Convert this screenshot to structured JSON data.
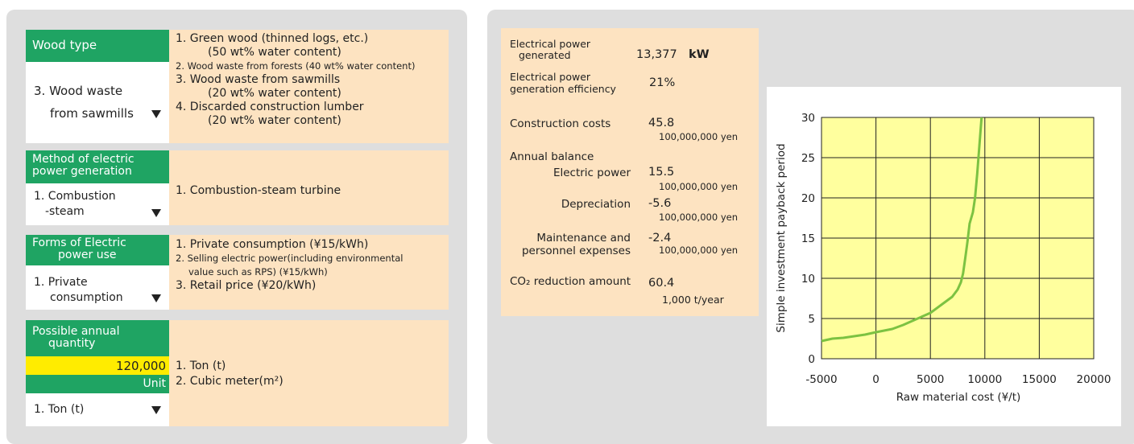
{
  "inputs": [
    {
      "label": "Wood type",
      "selected": [
        "3. Wood waste",
        "from sawmills"
      ],
      "options": [
        [
          "1. Green wood (thinned logs, etc.)",
          "(50 wt% water content)"
        ],
        [
          "2. Wood waste from forests (40 wt% water content)"
        ],
        [
          "3. Wood waste from sawmills",
          "(20 wt% water content)"
        ],
        [
          "4. Discarded construction lumber",
          "(20 wt% water content)"
        ]
      ]
    },
    {
      "label": [
        "Method of electric",
        "power generation"
      ],
      "selected": [
        "1. Combustion",
        "-steam"
      ],
      "options": [
        [
          "1. Combustion-steam turbine"
        ]
      ]
    },
    {
      "label": [
        "Forms of Electric",
        "power use"
      ],
      "selected": [
        "1. Private",
        "consumption"
      ],
      "options": [
        [
          "1. Private consumption (¥15/kWh)"
        ],
        [
          "2. Selling electric power(including environmental",
          "value such as RPS) (¥15/kWh)"
        ],
        [
          "3. Retail price (¥20/kWh)"
        ]
      ]
    },
    {
      "label": [
        "Possible annual",
        "quantity"
      ],
      "value": "120,000",
      "unit_label": "Unit",
      "selected": [
        "1. Ton (t)"
      ],
      "options": [
        [
          "1. Ton (t)"
        ],
        [
          "2. Cubic meter(m²)"
        ]
      ]
    }
  ],
  "results": [
    {
      "label": [
        "Electrical power",
        "generated"
      ],
      "value": "13,377",
      "unit": "kW"
    },
    {
      "label": [
        "Electrical power",
        "generation efficiency"
      ],
      "value": "21%"
    },
    {
      "label": [
        "Construction costs"
      ],
      "value": "45.8",
      "unit": "100,000,000 yen"
    },
    {
      "label": [
        "Annual balance"
      ]
    },
    {
      "label": [
        "Electric power"
      ],
      "value": "15.5",
      "unit": "100,000,000 yen"
    },
    {
      "label": [
        "Depreciation"
      ],
      "value": "-5.6",
      "unit": "100,000,000 yen"
    },
    {
      "label": [
        "Maintenance and",
        "personnel expenses"
      ],
      "value": "-2.4",
      "unit": "100,000,000 yen"
    },
    {
      "label": [
        "CO₂ reduction amount"
      ],
      "value": "60.4",
      "unit": "1,000 t/year"
    }
  ],
  "chart_data": {
    "type": "line",
    "xlabel": "Raw material cost (¥/t)",
    "ylabel": "Simple investment payback period",
    "x": [
      -5000,
      -4000,
      -3000,
      -2000,
      -1000,
      0,
      1500,
      2500,
      3500,
      4500,
      5000,
      6000,
      7000,
      7500,
      7800,
      8000,
      8200,
      8400,
      8600,
      8900,
      9100,
      9300,
      9500,
      9700
    ],
    "values": [
      2.2,
      2.5,
      2.6,
      2.8,
      3.0,
      3.3,
      3.7,
      4.2,
      4.8,
      5.4,
      5.7,
      6.7,
      7.7,
      8.6,
      9.5,
      10.6,
      12.5,
      14.5,
      16.8,
      18.2,
      20,
      23,
      26.5,
      30
    ],
    "color": "#7cc242",
    "plot_color": "#ffff9e",
    "grid": true,
    "xlim": [
      -5000,
      20000
    ],
    "xticks": [
      -5000,
      0,
      5000,
      10000,
      15000,
      20000
    ],
    "ylim": [
      0,
      30
    ],
    "yticks": [
      0,
      5,
      10,
      15,
      20,
      25,
      30
    ]
  }
}
